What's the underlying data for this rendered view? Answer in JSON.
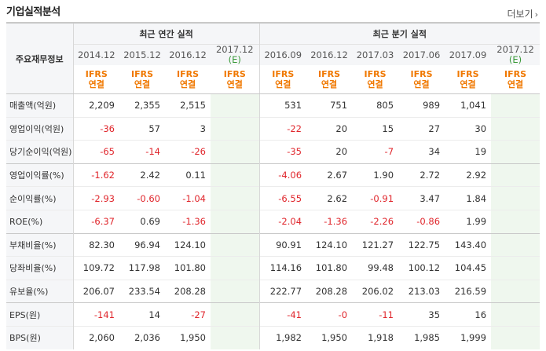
{
  "title": "기업실적분석",
  "more_label": "더보기",
  "corner_label": "주요재무정보",
  "annual_header": "최근 연간 실적",
  "quarter_header": "최근 분기 실적",
  "annual_periods": [
    "2014.12",
    "2015.12",
    "2016.12",
    "2017.12"
  ],
  "quarter_periods": [
    "2016.09",
    "2016.12",
    "2017.03",
    "2017.06",
    "2017.09",
    "2017.12"
  ],
  "estimate_mark": "(E)",
  "basis_line1": "IFRS",
  "basis_line2": "연결",
  "rows": [
    {
      "label": "매출액(억원)",
      "annual": [
        "2,209",
        "2,355",
        "2,515",
        ""
      ],
      "quarter": [
        "531",
        "751",
        "805",
        "989",
        "1,041",
        ""
      ]
    },
    {
      "label": "영업이익(억원)",
      "annual": [
        "-36",
        "57",
        "3",
        ""
      ],
      "quarter": [
        "-22",
        "20",
        "15",
        "27",
        "30",
        ""
      ]
    },
    {
      "label": "당기순이익(억원)",
      "annual": [
        "-65",
        "-14",
        "-26",
        ""
      ],
      "quarter": [
        "-35",
        "20",
        "-7",
        "34",
        "19",
        ""
      ]
    },
    {
      "label": "영업이익률(%)",
      "annual": [
        "-1.62",
        "2.42",
        "0.11",
        ""
      ],
      "quarter": [
        "-4.06",
        "2.67",
        "1.90",
        "2.72",
        "2.92",
        ""
      ]
    },
    {
      "label": "순이익률(%)",
      "annual": [
        "-2.93",
        "-0.60",
        "-1.04",
        ""
      ],
      "quarter": [
        "-6.55",
        "2.62",
        "-0.91",
        "3.47",
        "1.84",
        ""
      ]
    },
    {
      "label": "ROE(%)",
      "annual": [
        "-6.37",
        "0.69",
        "-1.36",
        ""
      ],
      "quarter": [
        "-2.04",
        "-1.36",
        "-2.26",
        "-0.86",
        "1.99",
        ""
      ]
    },
    {
      "label": "부채비율(%)",
      "annual": [
        "82.30",
        "96.94",
        "124.10",
        ""
      ],
      "quarter": [
        "90.91",
        "124.10",
        "121.27",
        "122.75",
        "143.40",
        ""
      ]
    },
    {
      "label": "당좌비율(%)",
      "annual": [
        "109.72",
        "117.98",
        "101.80",
        ""
      ],
      "quarter": [
        "114.16",
        "101.80",
        "99.48",
        "100.12",
        "104.45",
        ""
      ]
    },
    {
      "label": "유보율(%)",
      "annual": [
        "206.07",
        "233.54",
        "208.28",
        ""
      ],
      "quarter": [
        "222.77",
        "208.28",
        "206.02",
        "213.03",
        "216.59",
        ""
      ]
    },
    {
      "label": "EPS(원)",
      "annual": [
        "-141",
        "14",
        "-27",
        ""
      ],
      "quarter": [
        "-41",
        "-0",
        "-11",
        "35",
        "16",
        ""
      ]
    },
    {
      "label": "BPS(원)",
      "annual": [
        "2,060",
        "2,036",
        "1,950",
        ""
      ],
      "quarter": [
        "1,982",
        "1,950",
        "1,918",
        "1,985",
        "1,999",
        ""
      ]
    }
  ],
  "colors": {
    "negative": "#e0262c",
    "basis": "#f07800",
    "estimate": "#3a9a3a",
    "estimate_bg": "#eff7ee"
  }
}
